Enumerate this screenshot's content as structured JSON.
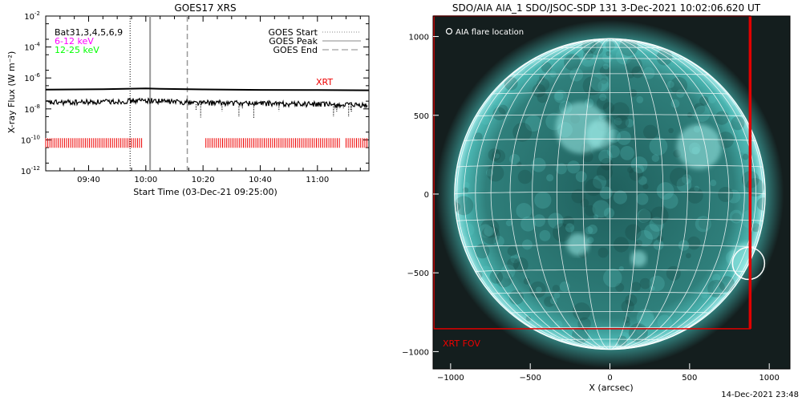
{
  "goes_chart": {
    "title": "GOES17 XRS",
    "ylabel": "X-ray Flux (W m⁻²)",
    "xlabel": "Start Time (03-Dec-21 09:25:00)",
    "legend_left": [
      {
        "text": "Bat31,3,4,5,6,9",
        "color": "#000000"
      },
      {
        "text": "6-12 keV",
        "color": "#ff00ff"
      },
      {
        "text": "12-25 keV",
        "color": "#00ff00"
      }
    ],
    "legend_right": [
      {
        "text": "GOES Start",
        "style": "dotted"
      },
      {
        "text": "GOES Peak",
        "style": "solid"
      },
      {
        "text": "GOES End",
        "style": "dashed"
      }
    ],
    "xrt_label": "XRT"
  },
  "chart_data": [
    {
      "type": "line",
      "title": "GOES17 XRS",
      "xlabel": "Start Time (03-Dec-21 09:25:00)",
      "ylabel": "X-ray Flux (W m⁻²)",
      "x_unit": "minutes after 09:25:00",
      "xlim": [
        0,
        113
      ],
      "x_ticks": [
        {
          "value": 15,
          "label": "09:40"
        },
        {
          "value": 35,
          "label": "10:00"
        },
        {
          "value": 55,
          "label": "10:20"
        },
        {
          "value": 75,
          "label": "10:40"
        },
        {
          "value": 95,
          "label": "11:00"
        }
      ],
      "y_scale": "log",
      "ylim": [
        -12,
        -2
      ],
      "y_ticks": [
        {
          "exp": -2,
          "label": "10"
        },
        {
          "exp": -4,
          "label": "10"
        },
        {
          "exp": -6,
          "label": "10"
        },
        {
          "exp": -8,
          "label": "10"
        },
        {
          "exp": -10,
          "label": "10"
        },
        {
          "exp": -12,
          "label": "10"
        }
      ],
      "series": [
        {
          "name": "long",
          "color": "#000000",
          "style": "solid",
          "x": [
            0,
            20,
            35,
            40,
            55,
            75,
            95,
            113
          ],
          "log10_y": [
            -6.75,
            -6.73,
            -6.68,
            -6.7,
            -6.74,
            -6.77,
            -6.78,
            -6.8
          ]
        },
        {
          "name": "short",
          "color": "#000000",
          "style": "noisy",
          "x": [
            0,
            20,
            35,
            40,
            55,
            75,
            95,
            113
          ],
          "log10_y": [
            -7.6,
            -7.55,
            -7.45,
            -7.5,
            -7.6,
            -7.65,
            -7.7,
            -7.8
          ]
        }
      ],
      "vlines": [
        {
          "name": "GOES Start",
          "x": 29.5,
          "style": "dotted",
          "color": "#000000"
        },
        {
          "name": "GOES Peak",
          "x": 36.5,
          "style": "solid",
          "color": "#999999"
        },
        {
          "name": "GOES End",
          "x": 49.5,
          "style": "dashed",
          "color": "#999999"
        }
      ],
      "xrt_intervals": [
        [
          0,
          34
        ],
        [
          56,
          103
        ],
        [
          105,
          113
        ]
      ],
      "xrt_level_log10": -10.2
    },
    {
      "type": "image",
      "title": "SDO/AIA AIA_1 SDO/JSOC-SDP 131  3-Dec-2021 10:02:06.620 UT",
      "xlabel": "X (arcsec)",
      "xlim": [
        -1110,
        1130
      ],
      "ylim": [
        -1110,
        1130
      ],
      "x_ticks": [
        -1000,
        -500,
        0,
        500,
        1000
      ],
      "y_ticks": [
        -1000,
        -500,
        0,
        500,
        1000
      ],
      "disk_center": [
        0,
        0
      ],
      "disk_radius": 975,
      "legend": "AIA flare location",
      "flare_location": [
        870,
        -440
      ],
      "xrt_fov_label": "XRT FOV",
      "xrt_fov": {
        "x": [
          -1110,
          880
        ],
        "y": [
          -855,
          1130
        ]
      },
      "grid_spacing_deg": 10,
      "colors": {
        "disk": "#4ab5b1",
        "limb": "#a8ecec",
        "background": "#141e1e",
        "grid": "#ffffff",
        "fov": "#e00000"
      }
    }
  ],
  "aia_image": {
    "title": "SDO/AIA AIA_1 SDO/JSOC-SDP 131  3-Dec-2021 10:02:06.620 UT",
    "xlabel": "X (arcsec)",
    "legend": "AIA flare location",
    "fov_label": "XRT FOV"
  },
  "footer": "14-Dec-2021 23:48"
}
